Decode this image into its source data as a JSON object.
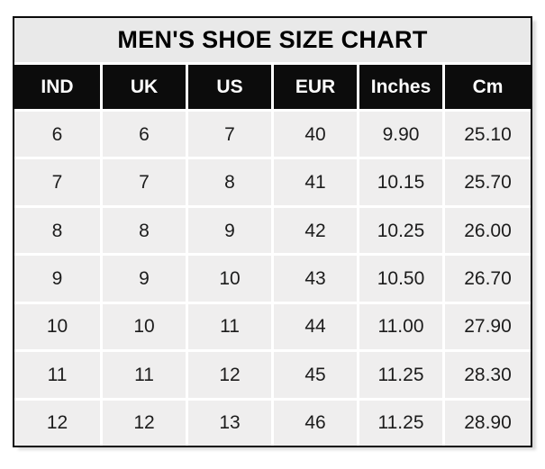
{
  "title": "MEN'S SHOE SIZE CHART",
  "colors": {
    "page_background": "#ffffff",
    "border": "#0a0a0a",
    "title_band_background": "#e9e9e9",
    "title_text": "#000000",
    "header_background": "#0c0c0c",
    "header_text": "#fdfdfd",
    "row_background": "#efeeee",
    "row_text": "#1c1c1c",
    "gutter": "#ffffff"
  },
  "chart_data": {
    "type": "table",
    "title": "MEN'S SHOE SIZE CHART",
    "columns": [
      "IND",
      "UK",
      "US",
      "EUR",
      "Inches",
      "Cm"
    ],
    "rows": [
      [
        "6",
        "6",
        "7",
        "40",
        "9.90",
        "25.10"
      ],
      [
        "7",
        "7",
        "8",
        "41",
        "10.15",
        "25.70"
      ],
      [
        "8",
        "8",
        "9",
        "42",
        "10.25",
        "26.00"
      ],
      [
        "9",
        "9",
        "10",
        "43",
        "10.50",
        "26.70"
      ],
      [
        "10",
        "10",
        "11",
        "44",
        "11.00",
        "27.90"
      ],
      [
        "11",
        "11",
        "12",
        "45",
        "11.25",
        "28.30"
      ],
      [
        "12",
        "12",
        "13",
        "46",
        "11.25",
        "28.90"
      ]
    ]
  }
}
